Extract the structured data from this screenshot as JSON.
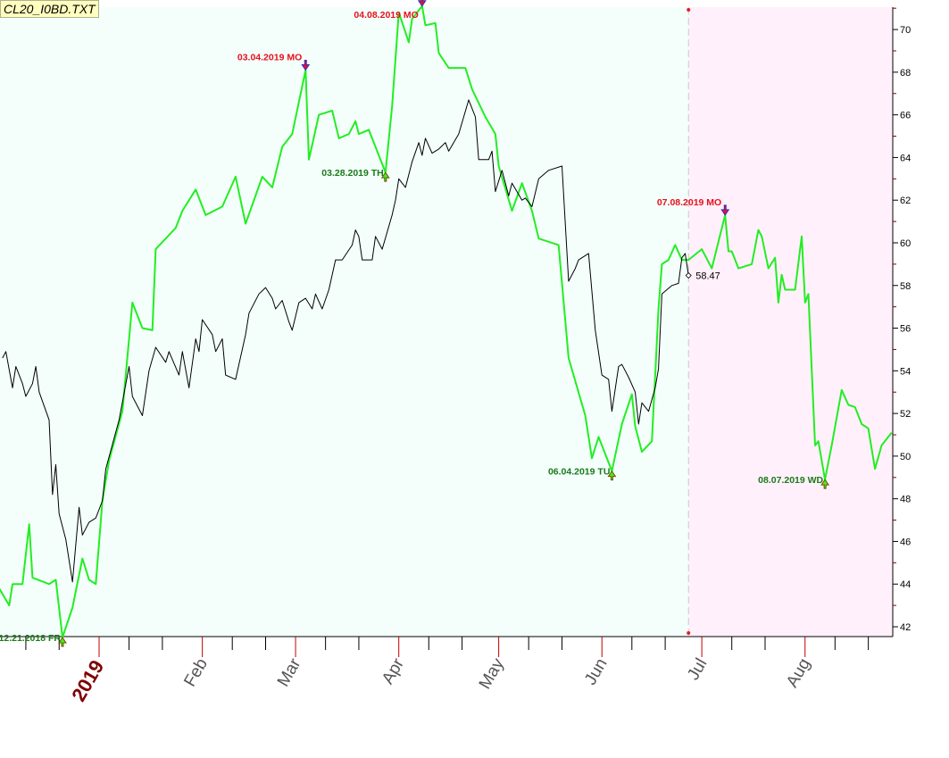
{
  "title": "CL20_I0BD.TXT",
  "chart_data": {
    "type": "line",
    "title": "CL20_I0BD.TXT",
    "xlabel": "",
    "ylabel": "",
    "xlim": [
      "2018-12-02",
      "2019-08-27"
    ],
    "ylim": [
      41.5,
      71.2
    ],
    "y_ticks": [
      42,
      44,
      46,
      48,
      50,
      52,
      54,
      56,
      58,
      60,
      62,
      64,
      66,
      68,
      70
    ],
    "x_tick_labels": [
      {
        "date": "2019-01-01",
        "label": "2019",
        "bold": true
      },
      {
        "date": "2019-02-01",
        "label": "Feb"
      },
      {
        "date": "2019-03-01",
        "label": "Mar"
      },
      {
        "date": "2019-04-01",
        "label": "Apr"
      },
      {
        "date": "2019-05-01",
        "label": "May"
      },
      {
        "date": "2019-06-01",
        "label": "Jun"
      },
      {
        "date": "2019-07-01",
        "label": "Jul"
      },
      {
        "date": "2019-08-01",
        "label": "Aug"
      }
    ],
    "grid": false,
    "forecast_start": "2019-06-27",
    "colors": {
      "plot_bg": "#f4fffc",
      "forecast_bg": "#fff0fb",
      "green": "#22ee22",
      "black": "#000000",
      "high_label": "#e8101a",
      "low_label": "#1a7a1a",
      "year_label": "#800000",
      "month_label": "#555555",
      "divider": "#c8c8c8",
      "marker_dot": "#e02020"
    },
    "series": [
      {
        "color": "#22ee22",
        "points": [
          [
            "2018-12-02",
            43.8
          ],
          [
            "2018-12-05",
            43.0
          ],
          [
            "2018-12-06",
            44.0
          ],
          [
            "2018-12-09",
            44.0
          ],
          [
            "2018-12-11",
            46.8
          ],
          [
            "2018-12-12",
            44.3
          ],
          [
            "2018-12-17",
            44.0
          ],
          [
            "2018-12-19",
            44.2
          ],
          [
            "2018-12-21",
            41.5
          ],
          [
            "2018-12-24",
            42.9
          ],
          [
            "2018-12-27",
            45.2
          ],
          [
            "2018-12-29",
            44.2
          ],
          [
            "2018-12-31",
            44.0
          ],
          [
            "2019-01-02",
            47.9
          ],
          [
            "2019-01-04",
            49.8
          ],
          [
            "2019-01-08",
            52.1
          ],
          [
            "2019-01-11",
            57.2
          ],
          [
            "2019-01-14",
            56.0
          ],
          [
            "2019-01-17",
            55.9
          ],
          [
            "2019-01-18",
            59.7
          ],
          [
            "2019-01-24",
            60.7
          ],
          [
            "2019-01-26",
            61.5
          ],
          [
            "2019-01-30",
            62.5
          ],
          [
            "2019-02-02",
            61.3
          ],
          [
            "2019-02-07",
            61.7
          ],
          [
            "2019-02-11",
            63.1
          ],
          [
            "2019-02-14",
            60.9
          ],
          [
            "2019-02-19",
            63.1
          ],
          [
            "2019-02-22",
            62.6
          ],
          [
            "2019-02-25",
            64.5
          ],
          [
            "2019-02-28",
            65.1
          ],
          [
            "2019-03-04",
            68.1
          ],
          [
            "2019-03-05",
            63.9
          ],
          [
            "2019-03-08",
            66.0
          ],
          [
            "2019-03-12",
            66.2
          ],
          [
            "2019-03-14",
            64.9
          ],
          [
            "2019-03-17",
            65.1
          ],
          [
            "2019-03-19",
            65.7
          ],
          [
            "2019-03-20",
            65.1
          ],
          [
            "2019-03-23",
            65.3
          ],
          [
            "2019-03-28",
            63.3
          ],
          [
            "2019-03-30",
            66.4
          ],
          [
            "2019-04-01",
            70.8
          ],
          [
            "2019-04-04",
            69.4
          ],
          [
            "2019-04-05",
            70.5
          ],
          [
            "2019-04-08",
            71.1
          ],
          [
            "2019-04-09",
            70.2
          ],
          [
            "2019-04-12",
            70.3
          ],
          [
            "2019-04-13",
            68.9
          ],
          [
            "2019-04-16",
            68.2
          ],
          [
            "2019-04-21",
            68.2
          ],
          [
            "2019-04-23",
            67.2
          ],
          [
            "2019-04-27",
            65.9
          ],
          [
            "2019-04-30",
            65.1
          ],
          [
            "2019-05-01",
            63.6
          ],
          [
            "2019-05-05",
            61.5
          ],
          [
            "2019-05-08",
            62.8
          ],
          [
            "2019-05-11",
            61.5
          ],
          [
            "2019-05-13",
            60.2
          ],
          [
            "2019-05-19",
            59.9
          ],
          [
            "2019-05-22",
            54.6
          ],
          [
            "2019-05-27",
            51.9
          ],
          [
            "2019-05-29",
            49.9
          ],
          [
            "2019-05-31",
            50.9
          ],
          [
            "2019-06-04",
            49.3
          ],
          [
            "2019-06-07",
            51.5
          ],
          [
            "2019-06-10",
            52.9
          ],
          [
            "2019-06-11",
            51.4
          ],
          [
            "2019-06-13",
            50.2
          ],
          [
            "2019-06-16",
            50.7
          ],
          [
            "2019-06-18",
            56.9
          ],
          [
            "2019-06-19",
            59.0
          ],
          [
            "2019-06-21",
            59.2
          ],
          [
            "2019-06-23",
            59.9
          ],
          [
            "2019-06-25",
            59.2
          ],
          [
            "2019-06-27",
            59.2
          ],
          [
            "2019-07-01",
            59.7
          ],
          [
            "2019-07-04",
            58.8
          ],
          [
            "2019-07-08",
            61.3
          ],
          [
            "2019-07-09",
            59.6
          ],
          [
            "2019-07-10",
            59.6
          ],
          [
            "2019-07-12",
            58.8
          ],
          [
            "2019-07-16",
            59.0
          ],
          [
            "2019-07-18",
            60.6
          ],
          [
            "2019-07-19",
            60.3
          ],
          [
            "2019-07-21",
            58.8
          ],
          [
            "2019-07-23",
            59.3
          ],
          [
            "2019-07-24",
            57.2
          ],
          [
            "2019-07-25",
            58.5
          ],
          [
            "2019-07-26",
            57.8
          ],
          [
            "2019-07-29",
            57.8
          ],
          [
            "2019-07-31",
            60.3
          ],
          [
            "2019-08-01",
            57.2
          ],
          [
            "2019-08-02",
            57.6
          ],
          [
            "2019-08-04",
            50.5
          ],
          [
            "2019-08-05",
            50.7
          ],
          [
            "2019-08-07",
            48.9
          ],
          [
            "2019-08-09",
            50.5
          ],
          [
            "2019-08-12",
            53.1
          ],
          [
            "2019-08-14",
            52.4
          ],
          [
            "2019-08-16",
            52.3
          ],
          [
            "2019-08-18",
            51.5
          ],
          [
            "2019-08-20",
            51.3
          ],
          [
            "2019-08-22",
            49.4
          ],
          [
            "2019-08-24",
            50.5
          ],
          [
            "2019-08-27",
            51.1
          ]
        ]
      },
      {
        "color": "#000000",
        "points": [
          [
            "2018-12-03",
            54.6
          ],
          [
            "2018-12-04",
            54.9
          ],
          [
            "2018-12-06",
            53.2
          ],
          [
            "2018-12-07",
            54.2
          ],
          [
            "2018-12-09",
            53.4
          ],
          [
            "2018-12-10",
            52.8
          ],
          [
            "2018-12-12",
            53.4
          ],
          [
            "2018-12-13",
            54.2
          ],
          [
            "2018-12-14",
            53.0
          ],
          [
            "2018-12-17",
            51.7
          ],
          [
            "2018-12-18",
            48.2
          ],
          [
            "2018-12-19",
            49.6
          ],
          [
            "2018-12-20",
            47.3
          ],
          [
            "2018-12-22",
            46.1
          ],
          [
            "2018-12-24",
            44.1
          ],
          [
            "2018-12-26",
            47.6
          ],
          [
            "2018-12-27",
            46.3
          ],
          [
            "2018-12-29",
            46.9
          ],
          [
            "2018-12-31",
            47.1
          ],
          [
            "2019-01-02",
            47.9
          ],
          [
            "2019-01-03",
            49.4
          ],
          [
            "2019-01-07",
            51.7
          ],
          [
            "2019-01-10",
            54.2
          ],
          [
            "2019-01-11",
            52.8
          ],
          [
            "2019-01-14",
            51.9
          ],
          [
            "2019-01-16",
            54.0
          ],
          [
            "2019-01-18",
            55.1
          ],
          [
            "2019-01-21",
            54.4
          ],
          [
            "2019-01-22",
            54.9
          ],
          [
            "2019-01-25",
            53.8
          ],
          [
            "2019-01-26",
            54.9
          ],
          [
            "2019-01-28",
            53.2
          ],
          [
            "2019-01-30",
            55.5
          ],
          [
            "2019-01-31",
            54.9
          ],
          [
            "2019-02-01",
            56.4
          ],
          [
            "2019-02-04",
            55.7
          ],
          [
            "2019-02-05",
            54.9
          ],
          [
            "2019-02-07",
            55.5
          ],
          [
            "2019-02-08",
            53.8
          ],
          [
            "2019-02-11",
            53.6
          ],
          [
            "2019-02-14",
            55.7
          ],
          [
            "2019-02-15",
            56.7
          ],
          [
            "2019-02-18",
            57.6
          ],
          [
            "2019-02-20",
            57.9
          ],
          [
            "2019-02-22",
            57.4
          ],
          [
            "2019-02-23",
            56.9
          ],
          [
            "2019-02-25",
            57.3
          ],
          [
            "2019-02-27",
            56.3
          ],
          [
            "2019-02-28",
            55.9
          ],
          [
            "2019-03-02",
            57.2
          ],
          [
            "2019-03-04",
            57.4
          ],
          [
            "2019-03-06",
            56.9
          ],
          [
            "2019-03-07",
            57.6
          ],
          [
            "2019-03-09",
            56.9
          ],
          [
            "2019-03-11",
            57.8
          ],
          [
            "2019-03-13",
            59.2
          ],
          [
            "2019-03-15",
            59.2
          ],
          [
            "2019-03-18",
            59.9
          ],
          [
            "2019-03-19",
            60.6
          ],
          [
            "2019-03-20",
            60.3
          ],
          [
            "2019-03-21",
            59.2
          ],
          [
            "2019-03-24",
            59.2
          ],
          [
            "2019-03-25",
            60.3
          ],
          [
            "2019-03-27",
            59.7
          ],
          [
            "2019-03-30",
            61.3
          ],
          [
            "2019-03-31",
            62.0
          ],
          [
            "2019-04-01",
            63.0
          ],
          [
            "2019-04-03",
            62.6
          ],
          [
            "2019-04-05",
            63.8
          ],
          [
            "2019-04-07",
            64.7
          ],
          [
            "2019-04-08",
            64.1
          ],
          [
            "2019-04-09",
            64.9
          ],
          [
            "2019-04-11",
            64.2
          ],
          [
            "2019-04-13",
            64.4
          ],
          [
            "2019-04-15",
            64.7
          ],
          [
            "2019-04-16",
            64.3
          ],
          [
            "2019-04-19",
            65.1
          ],
          [
            "2019-04-22",
            66.7
          ],
          [
            "2019-04-24",
            65.9
          ],
          [
            "2019-04-25",
            63.9
          ],
          [
            "2019-04-28",
            63.9
          ],
          [
            "2019-04-29",
            64.3
          ],
          [
            "2019-04-30",
            62.4
          ],
          [
            "2019-05-02",
            63.4
          ],
          [
            "2019-05-04",
            62.2
          ],
          [
            "2019-05-05",
            62.8
          ],
          [
            "2019-05-08",
            62.0
          ],
          [
            "2019-05-09",
            62.1
          ],
          [
            "2019-05-11",
            61.7
          ],
          [
            "2019-05-13",
            63.0
          ],
          [
            "2019-05-16",
            63.4
          ],
          [
            "2019-05-20",
            63.6
          ],
          [
            "2019-05-22",
            58.2
          ],
          [
            "2019-05-24",
            58.8
          ],
          [
            "2019-05-25",
            59.2
          ],
          [
            "2019-05-28",
            59.5
          ],
          [
            "2019-05-30",
            55.9
          ],
          [
            "2019-06-01",
            53.8
          ],
          [
            "2019-06-03",
            53.6
          ],
          [
            "2019-06-04",
            52.1
          ],
          [
            "2019-06-06",
            54.2
          ],
          [
            "2019-06-07",
            54.3
          ],
          [
            "2019-06-09",
            53.7
          ],
          [
            "2019-06-11",
            53.0
          ],
          [
            "2019-06-12",
            51.5
          ],
          [
            "2019-06-13",
            52.5
          ],
          [
            "2019-06-15",
            52.1
          ],
          [
            "2019-06-17",
            53.2
          ],
          [
            "2019-06-18",
            54.1
          ],
          [
            "2019-06-19",
            57.6
          ],
          [
            "2019-06-22",
            58.0
          ],
          [
            "2019-06-24",
            58.1
          ],
          [
            "2019-06-25",
            59.3
          ],
          [
            "2019-06-26",
            59.5
          ],
          [
            "2019-06-27",
            58.47
          ]
        ]
      }
    ],
    "last_value_label": {
      "date": "2019-06-27",
      "value": 58.47,
      "text": "58.47"
    },
    "annotations": [
      {
        "type": "high",
        "date": "2019-03-04",
        "value": 68.1,
        "text": "03.04.2019 MO"
      },
      {
        "type": "high",
        "date": "2019-04-08",
        "value": 71.1,
        "text": "04.08.2019 MO"
      },
      {
        "type": "high",
        "date": "2019-07-08",
        "value": 61.3,
        "text": "07.08.2019 MO"
      },
      {
        "type": "low",
        "date": "2018-12-21",
        "value": 41.5,
        "text": "12.21.2018 FR"
      },
      {
        "type": "low",
        "date": "2019-03-28",
        "value": 63.3,
        "text": "03.28.2019 TH"
      },
      {
        "type": "low",
        "date": "2019-06-04",
        "value": 49.3,
        "text": "06.04.2019 TU"
      },
      {
        "type": "low",
        "date": "2019-08-07",
        "value": 48.9,
        "text": "08.07.2019 WD"
      }
    ]
  }
}
